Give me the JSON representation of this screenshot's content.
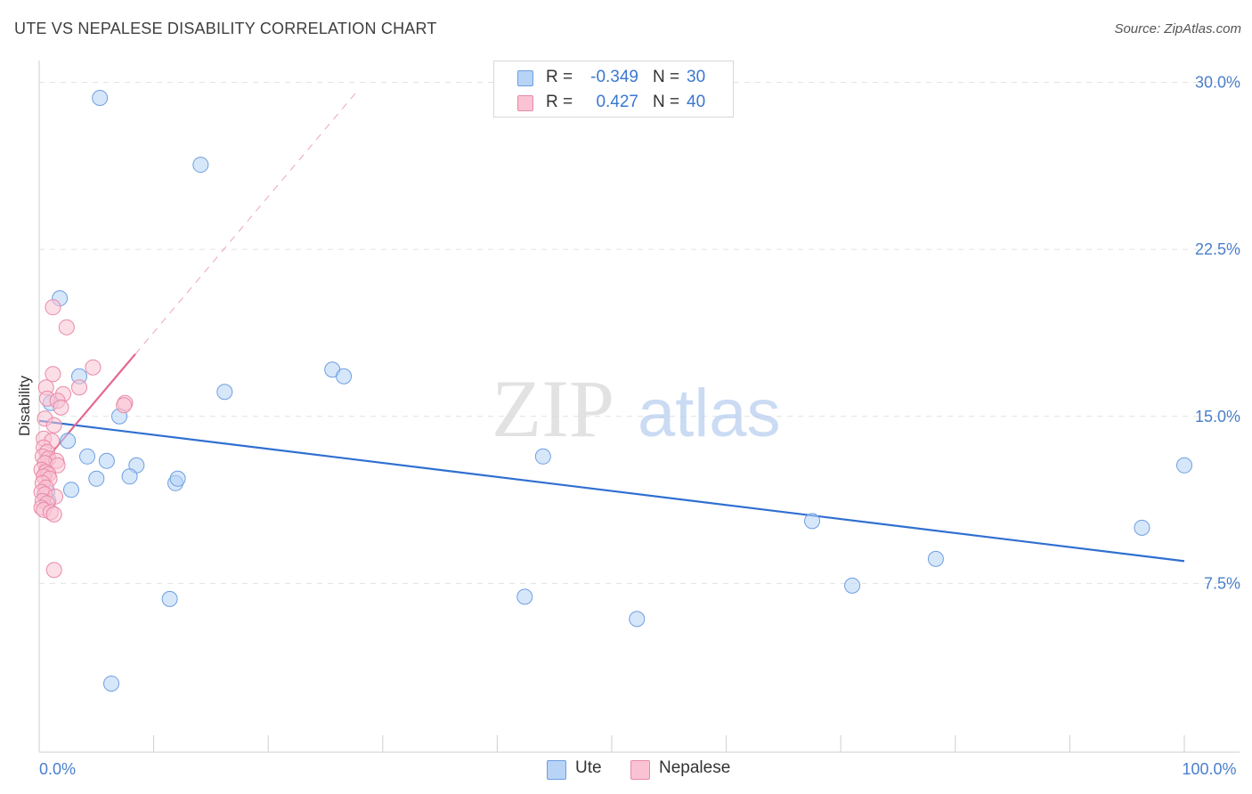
{
  "header": {
    "title": "UTE VS NEPALESE DISABILITY CORRELATION CHART",
    "source": "Source: ZipAtlas.com"
  },
  "watermark": {
    "zip": "ZIP",
    "atlas": "atlas"
  },
  "legend": {
    "rows": [
      {
        "r_label": "R =",
        "r_value": "-0.349",
        "n_label": "N =",
        "n_value": "30",
        "fill": "#b7d3f6",
        "stroke": "#6d9fe0"
      },
      {
        "r_label": "R =",
        "r_value": "0.427",
        "n_label": "N =",
        "n_value": "40",
        "fill": "#f9c3d4",
        "stroke": "#e88aa8"
      }
    ]
  },
  "chart_data": {
    "type": "scatter",
    "title": "UTE VS NEPALESE DISABILITY CORRELATION CHART",
    "xlabel": "",
    "ylabel": "Disability",
    "xlim": [
      0,
      100
    ],
    "ylim": [
      0,
      30.5
    ],
    "x_ticks": [
      {
        "value": 0,
        "label": "0.0%"
      },
      {
        "value": 100,
        "label": "100.0%"
      }
    ],
    "x_minor_ticks": [
      10,
      20,
      30,
      40,
      50,
      60,
      70,
      80,
      90
    ],
    "y_ticks": [
      {
        "value": 7.5,
        "label": "7.5%"
      },
      {
        "value": 15,
        "label": "15.0%"
      },
      {
        "value": 22.5,
        "label": "22.5%"
      },
      {
        "value": 30,
        "label": "30.0%"
      }
    ],
    "grid": true,
    "legend_position": "bottom-center",
    "colors": {
      "ute_fill": "#b7d3f6",
      "ute_stroke": "#6d9fe0",
      "ute_line": "#2f6fd1",
      "nep_fill": "#f9c3d4",
      "nep_stroke": "#e88aa8",
      "nep_line": "#e4678f"
    },
    "series": [
      {
        "name": "Ute",
        "color": "#b7d3f6",
        "points": [
          [
            5.3,
            29.3
          ],
          [
            14.1,
            26.3
          ],
          [
            1.8,
            20.3
          ],
          [
            16.2,
            16.1
          ],
          [
            25.6,
            17.1
          ],
          [
            26.6,
            16.8
          ],
          [
            3.5,
            16.8
          ],
          [
            1.0,
            15.6
          ],
          [
            7.0,
            15.0
          ],
          [
            2.5,
            13.9
          ],
          [
            4.2,
            13.2
          ],
          [
            5.9,
            13.0
          ],
          [
            8.5,
            12.8
          ],
          [
            5.0,
            12.2
          ],
          [
            7.9,
            12.3
          ],
          [
            11.9,
            12.0
          ],
          [
            12.1,
            12.2
          ],
          [
            2.8,
            11.7
          ],
          [
            0.7,
            11.6
          ],
          [
            0.8,
            11.2
          ],
          [
            44.0,
            13.2
          ],
          [
            67.5,
            10.3
          ],
          [
            96.3,
            10.0
          ],
          [
            100.0,
            12.8
          ],
          [
            78.3,
            8.6
          ],
          [
            71.0,
            7.4
          ],
          [
            11.4,
            6.8
          ],
          [
            42.4,
            6.9
          ],
          [
            52.2,
            5.9
          ],
          [
            6.3,
            3.0
          ]
        ]
      },
      {
        "name": "Nepalese",
        "color": "#f9c3d4",
        "points": [
          [
            1.2,
            19.9
          ],
          [
            2.4,
            19.0
          ],
          [
            4.7,
            17.2
          ],
          [
            1.2,
            16.9
          ],
          [
            3.5,
            16.3
          ],
          [
            0.6,
            16.3
          ],
          [
            2.1,
            16.0
          ],
          [
            0.7,
            15.8
          ],
          [
            1.6,
            15.7
          ],
          [
            7.5,
            15.6
          ],
          [
            7.4,
            15.5
          ],
          [
            1.9,
            15.4
          ],
          [
            0.5,
            14.9
          ],
          [
            1.3,
            14.6
          ],
          [
            0.4,
            14.0
          ],
          [
            1.1,
            13.9
          ],
          [
            0.4,
            13.6
          ],
          [
            0.7,
            13.4
          ],
          [
            0.3,
            13.2
          ],
          [
            0.8,
            13.1
          ],
          [
            1.5,
            13.0
          ],
          [
            0.5,
            12.9
          ],
          [
            1.6,
            12.8
          ],
          [
            0.2,
            12.6
          ],
          [
            0.6,
            12.5
          ],
          [
            0.8,
            12.4
          ],
          [
            0.4,
            12.3
          ],
          [
            0.9,
            12.2
          ],
          [
            0.3,
            12.0
          ],
          [
            0.6,
            11.8
          ],
          [
            0.2,
            11.6
          ],
          [
            0.5,
            11.5
          ],
          [
            1.4,
            11.4
          ],
          [
            0.3,
            11.2
          ],
          [
            0.7,
            11.1
          ],
          [
            0.2,
            10.9
          ],
          [
            0.4,
            10.8
          ],
          [
            1.0,
            10.7
          ],
          [
            1.3,
            10.6
          ],
          [
            1.3,
            8.1
          ]
        ]
      }
    ],
    "trendlines": [
      {
        "series": "Ute",
        "from": [
          0,
          14.8
        ],
        "to": [
          100,
          8.5
        ],
        "style": "solid"
      },
      {
        "series": "Nepalese",
        "from": [
          0,
          12.7
        ],
        "to": [
          8.4,
          17.8
        ],
        "style": "solid"
      },
      {
        "series": "Nepalese",
        "from": [
          8.4,
          17.8
        ],
        "to": [
          27.6,
          29.5
        ],
        "style": "dashed"
      }
    ]
  },
  "bottom_legend": {
    "items": [
      {
        "label": "Ute",
        "fill": "#b7d3f6",
        "stroke": "#6d9fe0"
      },
      {
        "label": "Nepalese",
        "fill": "#f9c3d4",
        "stroke": "#e88aa8"
      }
    ]
  }
}
